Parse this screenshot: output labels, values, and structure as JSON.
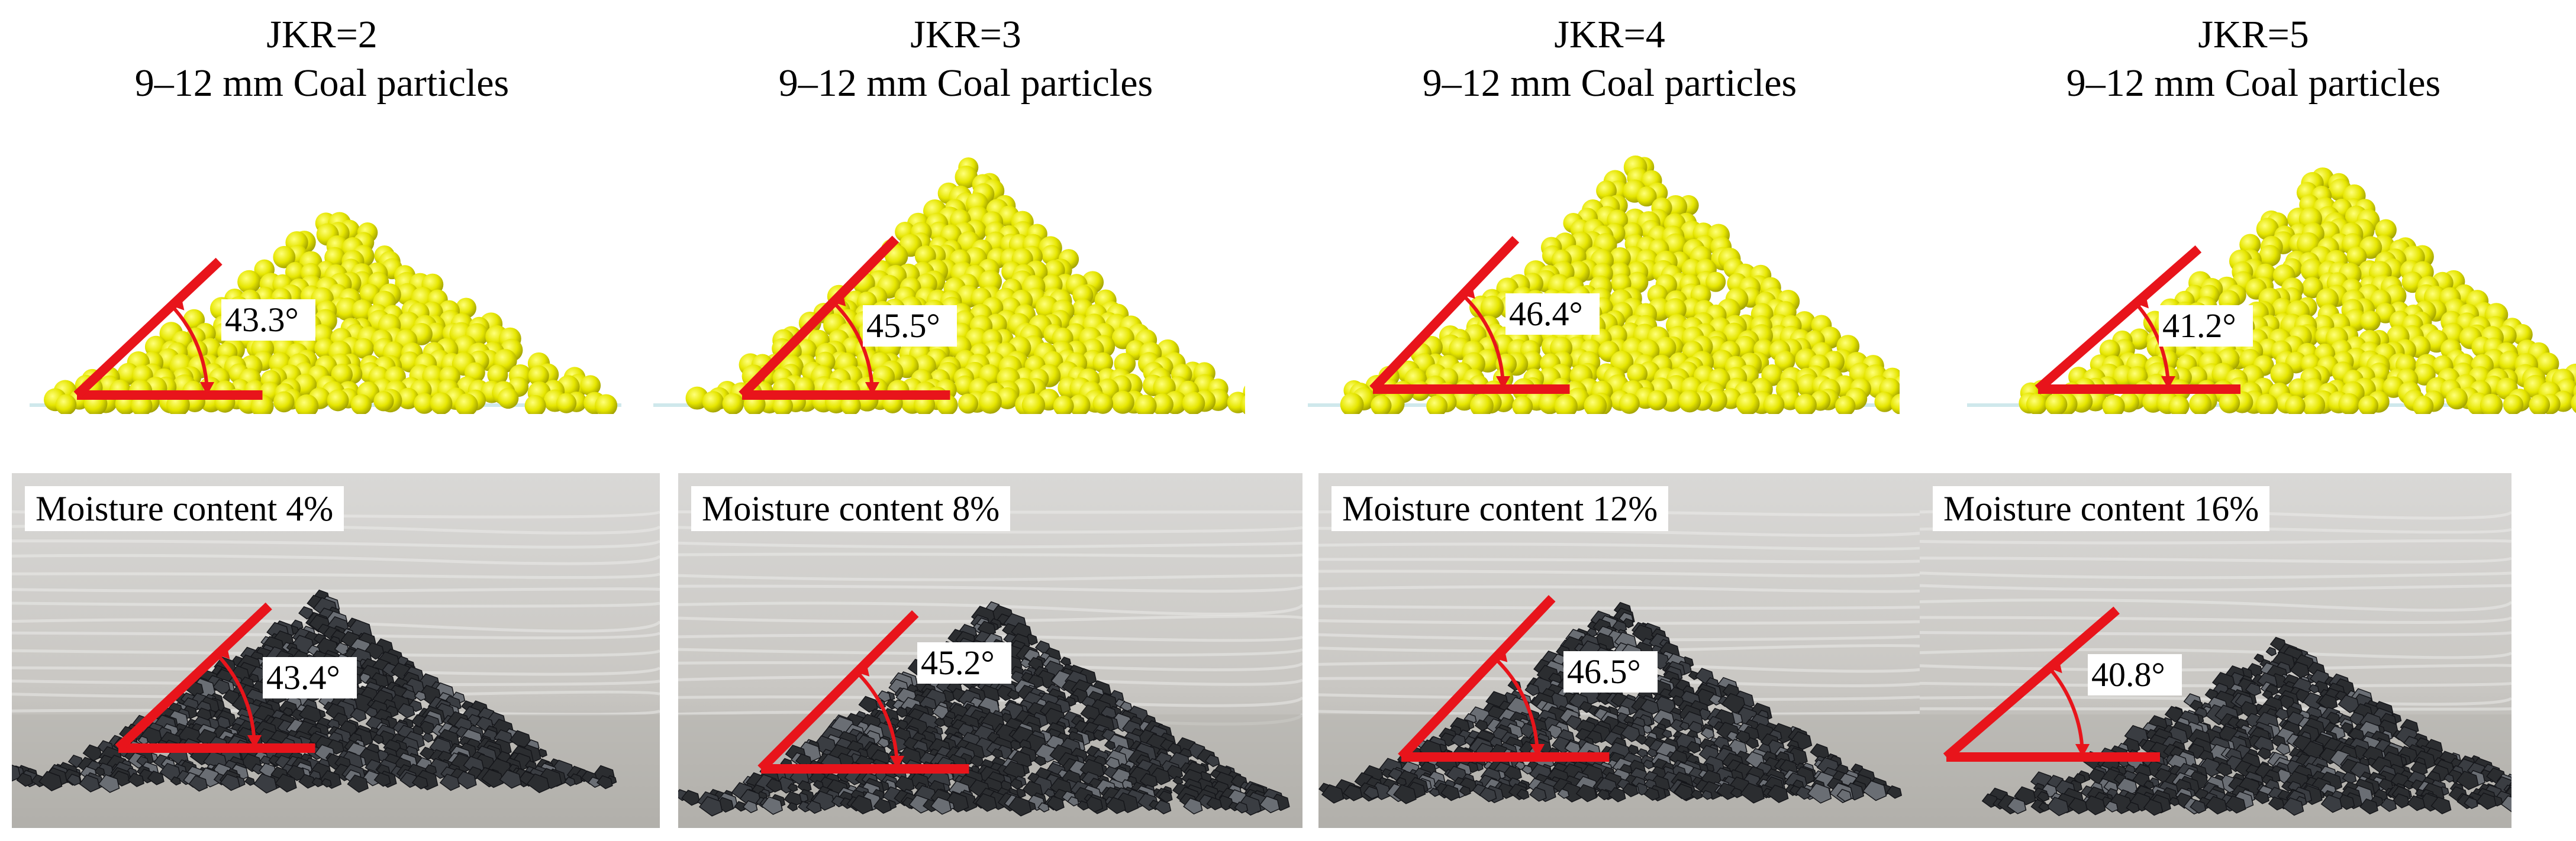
{
  "panels": [
    {
      "jkr_label": "JKR=2",
      "particle_label": "9–12 mm Coal particles",
      "simulated_angle": "43.3°",
      "simulated_angle_value": 43.3,
      "moisture_label": "Moisture content 4%",
      "measured_angle": "43.4°",
      "measured_angle_value": 43.4
    },
    {
      "jkr_label": "JKR=3",
      "particle_label": "9–12 mm Coal particles",
      "simulated_angle": "45.5°",
      "simulated_angle_value": 45.5,
      "moisture_label": "Moisture content 8%",
      "measured_angle": "45.2°",
      "measured_angle_value": 45.2
    },
    {
      "jkr_label": "JKR=4",
      "particle_label": "9–12 mm Coal particles",
      "simulated_angle": "46.4°",
      "simulated_angle_value": 46.4,
      "moisture_label": "Moisture content 12%",
      "measured_angle": "46.5°",
      "measured_angle_value": 46.5
    },
    {
      "jkr_label": "JKR=5",
      "particle_label": "9–12 mm Coal particles",
      "simulated_angle": "41.2°",
      "simulated_angle_value": 41.2,
      "moisture_label": "Moisture content 16%",
      "measured_angle": "40.8°",
      "measured_angle_value": 40.8
    }
  ],
  "colors": {
    "angle_line": "#e8141b",
    "particle": "#e6e600",
    "particle_shadow": "#9a9a00",
    "coal": "#2b2d30",
    "photo_background": "#c9c7c3"
  }
}
